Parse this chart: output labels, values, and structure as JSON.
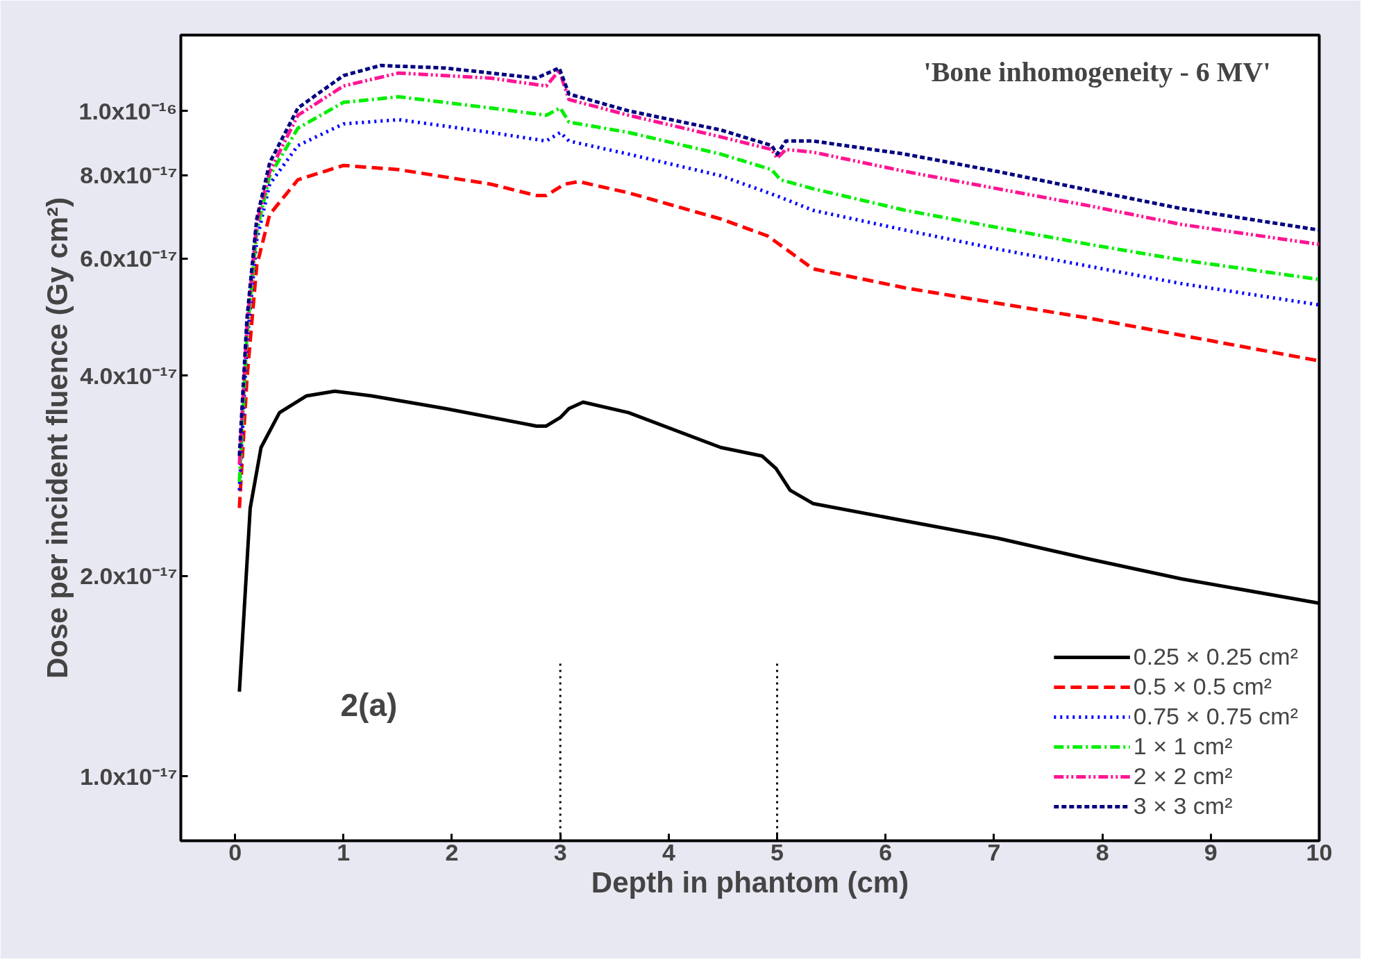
{
  "chart_data": {
    "type": "line",
    "xlabel": "Depth in phantom (cm)",
    "ylabel": "Dose per incident fluence (Gy cm²)",
    "log": "y",
    "grid": false,
    "legend": "bottom right",
    "marker": "none",
    "xlim": [
      -0.5,
      10
    ],
    "xticks": [
      0,
      1,
      2,
      3,
      4,
      5,
      6,
      7,
      8,
      9,
      10
    ],
    "ylim": [
      8e-18,
      1.3e-16
    ],
    "yticks": [
      {
        "value": 1e-17,
        "label": "1.0x10⁻¹⁷"
      },
      {
        "value": 2e-17,
        "label": "2.0x10⁻¹⁷"
      },
      {
        "value": 4e-17,
        "label": "4.0x10⁻¹⁷"
      },
      {
        "value": 6e-17,
        "label": "6.0x10⁻¹⁷"
      },
      {
        "value": 8e-17,
        "label": "8.0x10⁻¹⁷"
      },
      {
        "value": 1e-16,
        "label": "1.0x10⁻¹⁶"
      }
    ],
    "annotations": [
      "'Bone inhomogeneity - 6 MV'",
      "2(a)"
    ],
    "ref_lines": [
      {
        "axis": "x",
        "value": 3,
        "label": null,
        "color": "#000000",
        "line_style": "dotted"
      },
      {
        "axis": "x",
        "value": 5,
        "label": null,
        "color": "#000000",
        "line_style": "dotted"
      }
    ],
    "series": [
      {
        "name": "0.25 × 0.25 cm²",
        "color": "#000000",
        "line_style": "solid",
        "x": [
          0.04,
          0.14,
          0.24,
          0.41,
          0.66,
          0.92,
          1.26,
          1.94,
          2.78,
          2.87,
          3.0,
          3.08,
          3.21,
          3.63,
          4.48,
          4.86,
          4.99,
          5.12,
          5.33,
          6.18,
          7.03,
          7.88,
          8.73,
          10
        ],
        "values": [
          1.34e-17,
          2.53e-17,
          3.12e-17,
          3.52e-17,
          3.73e-17,
          3.79e-17,
          3.73e-17,
          3.57e-17,
          3.36e-17,
          3.36e-17,
          3.46e-17,
          3.57e-17,
          3.65e-17,
          3.52e-17,
          3.12e-17,
          3.03e-17,
          2.9e-17,
          2.69e-17,
          2.57e-17,
          2.42e-17,
          2.28e-17,
          2.12e-17,
          1.98e-17,
          1.82e-17
        ]
      },
      {
        "name": "0.5 × 0.5 cm²",
        "color": "#ff0000",
        "line_style": "dashed",
        "x": [
          0.04,
          0.11,
          0.2,
          0.32,
          0.58,
          1.0,
          1.51,
          2.36,
          2.78,
          2.87,
          3.04,
          3.17,
          3.63,
          4.48,
          4.91,
          5.08,
          5.33,
          6.18,
          7.03,
          7.88,
          8.73,
          10
        ],
        "values": [
          2.53e-17,
          3.96e-17,
          5.85e-17,
          6.99e-17,
          7.88e-17,
          8.28e-17,
          8.16e-17,
          7.76e-17,
          7.46e-17,
          7.46e-17,
          7.76e-17,
          7.83e-17,
          7.53e-17,
          6.88e-17,
          6.49e-17,
          6.2e-17,
          5.79e-17,
          5.42e-17,
          5.14e-17,
          4.88e-17,
          4.6e-17,
          4.21e-17
        ]
      },
      {
        "name": "0.75 × 0.75 cm²",
        "color": "#0000ff",
        "line_style": "dotted",
        "x": [
          0.04,
          0.11,
          0.2,
          0.32,
          0.58,
          1.0,
          1.51,
          2.36,
          2.87,
          3.0,
          3.08,
          3.63,
          4.48,
          4.99,
          5.33,
          6.18,
          7.03,
          7.88,
          8.73,
          10
        ],
        "values": [
          2.69e-17,
          4.47e-17,
          6.39e-17,
          7.76e-17,
          8.87e-17,
          9.56e-17,
          9.7e-17,
          9.28e-17,
          9.01e-17,
          9.28e-17,
          9.01e-17,
          8.61e-17,
          7.99e-17,
          7.46e-17,
          7.09e-17,
          6.62e-17,
          6.2e-17,
          5.84e-17,
          5.5e-17,
          5.11e-17
        ]
      },
      {
        "name": "1 × 1 cm²",
        "color": "#00ee00",
        "line_style": "dashdot",
        "x": [
          0.04,
          0.11,
          0.2,
          0.32,
          0.58,
          1.0,
          1.51,
          2.36,
          2.87,
          3.0,
          3.08,
          3.63,
          4.48,
          4.95,
          5.03,
          5.33,
          6.18,
          7.03,
          7.88,
          8.73,
          10
        ],
        "values": [
          2.77e-17,
          4.6e-17,
          6.58e-17,
          7.99e-17,
          9.42e-17,
          1.03e-16,
          1.05e-16,
          1.01e-16,
          9.85e-17,
          1.01e-16,
          9.62e-17,
          9.28e-17,
          8.61e-17,
          8.16e-17,
          7.88e-17,
          7.64e-17,
          7.09e-17,
          6.68e-17,
          6.3e-17,
          5.97e-17,
          5.58e-17
        ]
      },
      {
        "name": "2 × 2 cm²",
        "color": "#ff1493",
        "line_style": "dashdotdot",
        "x": [
          0.04,
          0.11,
          0.2,
          0.32,
          0.58,
          1.0,
          1.51,
          2.36,
          2.87,
          2.99,
          3.08,
          3.63,
          4.48,
          4.95,
          5.0,
          5.08,
          5.33,
          6.18,
          7.03,
          7.88,
          8.73,
          10
        ],
        "values": [
          2.94e-17,
          4.74e-17,
          6.78e-17,
          8.11e-17,
          9.85e-17,
          1.09e-16,
          1.14e-16,
          1.12e-16,
          1.09e-16,
          1.15e-16,
          1.04e-16,
          9.85e-17,
          9.14e-17,
          8.75e-17,
          8.49e-17,
          8.75e-17,
          8.67e-17,
          8.11e-17,
          7.64e-17,
          7.2e-17,
          6.75e-17,
          6.3e-17
        ]
      },
      {
        "name": "3 × 3 cm²",
        "color": "#000080",
        "line_style": "shortdash",
        "x": [
          0.04,
          0.11,
          0.2,
          0.32,
          0.58,
          1.0,
          1.34,
          1.94,
          2.78,
          2.99,
          3.08,
          3.63,
          4.48,
          4.95,
          5.0,
          5.08,
          5.33,
          6.18,
          7.03,
          7.88,
          8.73,
          10
        ],
        "values": [
          3.03e-17,
          4.88e-17,
          6.88e-17,
          8.36e-17,
          1.01e-16,
          1.13e-16,
          1.17e-16,
          1.16e-16,
          1.12e-16,
          1.16e-16,
          1.06e-16,
          1e-16,
          9.36e-17,
          8.87e-17,
          8.61e-17,
          9.01e-17,
          9.01e-17,
          8.61e-17,
          8.11e-17,
          7.6e-17,
          7.13e-17,
          6.62e-17
        ]
      }
    ]
  }
}
